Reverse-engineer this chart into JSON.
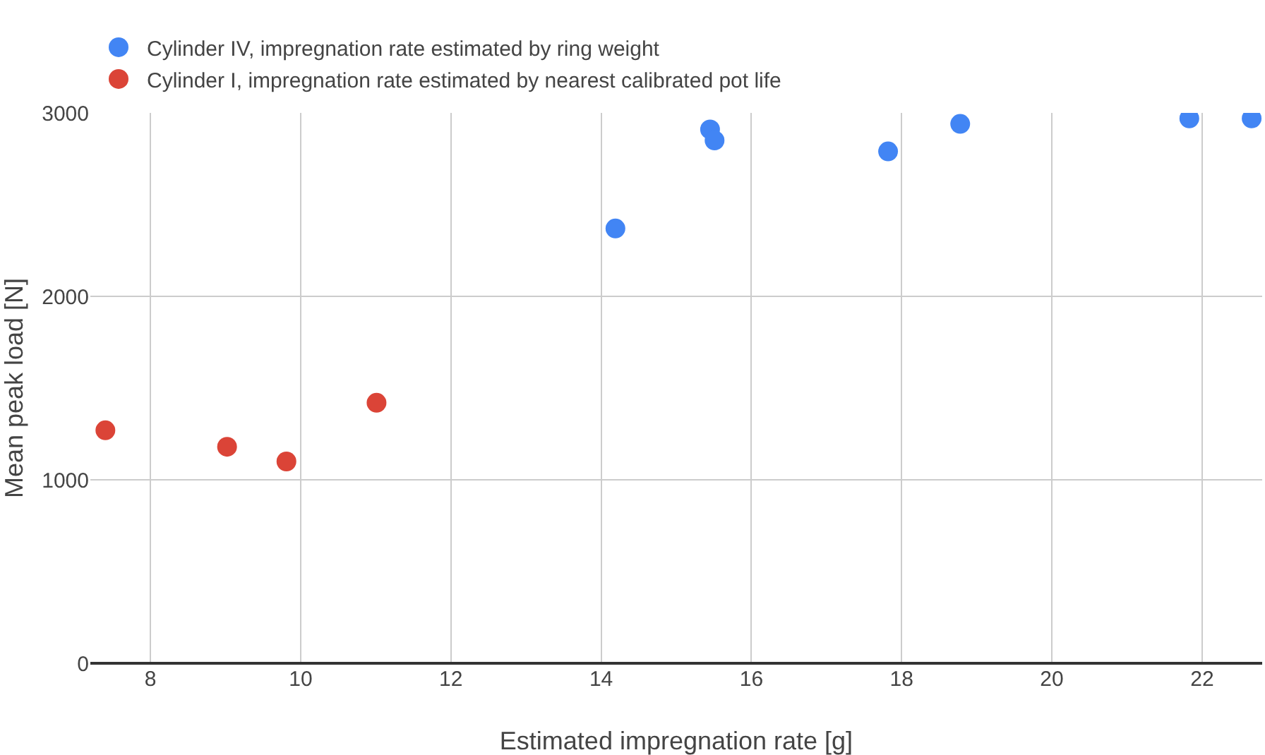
{
  "chart_data": {
    "type": "scatter",
    "xlabel": "Estimated impregnation rate [g]",
    "ylabel": "Mean peak load [N]",
    "series": [
      {
        "name": "Cylinder IV, impregnation rate estimated by ring weight",
        "color": "#4285f4",
        "x": [
          14.19,
          15.45,
          15.51,
          17.82,
          18.78,
          21.83,
          22.66
        ],
        "values": [
          2370,
          2910,
          2850,
          2790,
          2940,
          2970,
          2970
        ]
      },
      {
        "name": "Cylinder I, impregnation rate estimated by nearest calibrated pot life",
        "color": "#db4437",
        "x": [
          7.4,
          9.02,
          9.81,
          11.01
        ],
        "values": [
          1270,
          1180,
          1100,
          1420
        ]
      }
    ],
    "xlim": [
      7.2,
      22.8
    ],
    "xticks": [
      8,
      10,
      12,
      14,
      16,
      18,
      20,
      22
    ],
    "ylim": [
      0,
      3000
    ],
    "yticks": [
      0,
      1000,
      2000,
      3000
    ],
    "grid": true,
    "legend": "top left",
    "marker": "circle"
  }
}
